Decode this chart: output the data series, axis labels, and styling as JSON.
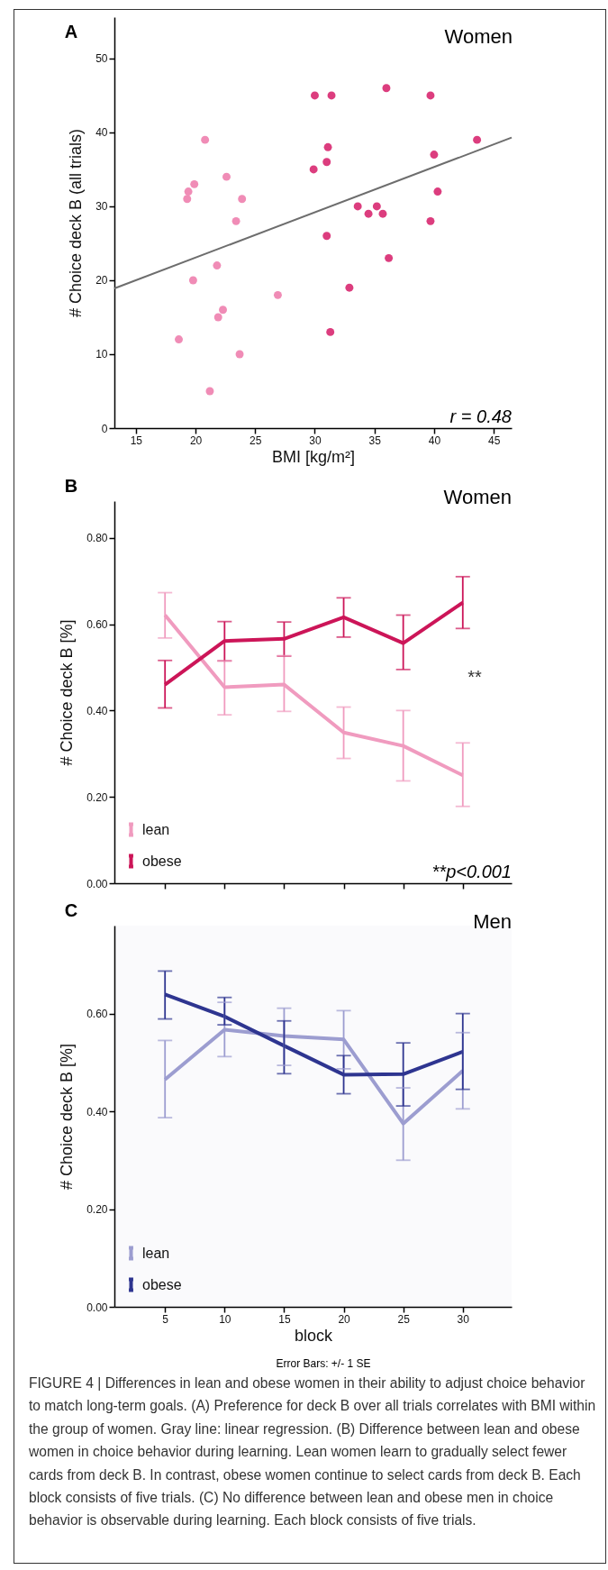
{
  "chart_data": [
    {
      "type": "scatter",
      "title": "Women",
      "xlabel": "BMI [kg/m²]",
      "ylabel": "# Choice deck B (all trials)",
      "marker": "circle",
      "xlim": [
        13.2,
        46.5
      ],
      "xticks": [
        15,
        20,
        25,
        30,
        35,
        40,
        45
      ],
      "ylim": [
        0,
        55.6
      ],
      "yticks": [
        0,
        10,
        20,
        30,
        40,
        50
      ],
      "annotations": [
        "A",
        "r = 0.48"
      ],
      "series": [
        {
          "color": "#f08cb6",
          "x": [
            20.8,
            19.4,
            19.3,
            19.9,
            22.6,
            23.9,
            23.4,
            21.8,
            19.8,
            22.3,
            21.9,
            18.6,
            23.7,
            21.2,
            26.9
          ],
          "values": [
            39,
            32,
            31,
            33,
            34,
            31,
            28,
            22,
            20,
            16,
            15,
            12,
            10,
            5,
            18
          ]
        },
        {
          "color": "#dc3d7e",
          "x": [
            30.0,
            31.4,
            36.0,
            39.7,
            29.9,
            31.0,
            31.1,
            43.6,
            40.0,
            40.3,
            39.7,
            33.6,
            34.5,
            35.2,
            35.7,
            31.0,
            36.2,
            32.9,
            31.3
          ],
          "values": [
            45,
            45,
            46,
            45,
            35,
            36,
            38,
            39,
            37,
            32,
            28,
            30,
            29,
            30,
            29,
            26,
            23,
            19,
            13
          ]
        },
        {
          "type": "line",
          "marker": "none",
          "color": "#6d6d6d",
          "x": [
            13.2,
            46.5
          ],
          "values": [
            18.9,
            39.3
          ]
        }
      ]
    },
    {
      "type": "line",
      "title": "Women",
      "ylabel": "# Choice deck B [%]",
      "legend": "bottom left",
      "tick_labels": "y",
      "xlim": [
        0.75,
        34.1
      ],
      "xticks": [
        5,
        10,
        15,
        20,
        25,
        30
      ],
      "ylim": [
        0,
        0.885
      ],
      "yticks": [
        {
          "value": 0,
          "label": "0.00"
        },
        {
          "value": 0.2,
          "label": "0.20"
        },
        {
          "value": 0.4,
          "label": "0.40"
        },
        {
          "value": 0.6,
          "label": "0.60"
        },
        {
          "value": 0.8,
          "label": "0.80"
        }
      ],
      "annotations": [
        "B",
        "**p<0.001",
        "**"
      ],
      "x": [
        5,
        10,
        15,
        20,
        25,
        30
      ],
      "series": [
        {
          "name": "lean",
          "color": "#f09bbf",
          "values": [
            0.621,
            0.454,
            0.46,
            0.349,
            0.318,
            0.25
          ],
          "errors": [
            [
              0.568,
              0.673
            ],
            [
              0.39,
              0.515
            ],
            [
              0.398,
              0.527
            ],
            [
              0.289,
              0.408
            ],
            [
              0.237,
              0.4
            ],
            [
              0.178,
              0.325
            ]
          ]
        },
        {
          "name": "obese",
          "color": "#cc1558",
          "values": [
            0.46,
            0.561,
            0.566,
            0.616,
            0.556,
            0.65
          ],
          "errors": [
            [
              0.406,
              0.516
            ],
            [
              0.515,
              0.606
            ],
            [
              0.526,
              0.605
            ],
            [
              0.57,
              0.661
            ],
            [
              0.495,
              0.621
            ],
            [
              0.59,
              0.71
            ]
          ]
        }
      ]
    },
    {
      "type": "line",
      "title": "Men",
      "xlabel": "block",
      "ylabel": "# Choice deck B [%]",
      "legend": "bottom left",
      "xlim": [
        0.75,
        34.1
      ],
      "xticks": [
        5,
        10,
        15,
        20,
        25,
        30
      ],
      "ylim": [
        0,
        0.78
      ],
      "yticks": [
        {
          "value": 0,
          "label": "0.00"
        },
        {
          "value": 0.2,
          "label": "0.20"
        },
        {
          "value": 0.4,
          "label": "0.40"
        },
        {
          "value": 0.6,
          "label": "0.60"
        }
      ],
      "annotations": [
        "C",
        "Error Bars: +/- 1 SE",
        "FIGURE 4 | Differences in lean and obese women in their ability to adjust choice behavior to match long-term goals. (A) Preference for deck B over all trials correlates with BMI within the group of women. Gray line: linear regression. (B) Difference between lean and obese women in choice behavior during learning. Lean women learn to gradually select fewer cards from deck B. In contrast, obese women continue to select cards from deck B. Each block consists of five trials. (C) No difference between lean and obese men in choice behavior is observable during learning. Each block consists of five trials."
      ],
      "x": [
        5,
        10,
        15,
        20,
        25,
        30
      ],
      "series": [
        {
          "name": "lean",
          "color": "#9c9dd0",
          "values": [
            0.465,
            0.567,
            0.554,
            0.547,
            0.375,
            0.483
          ],
          "errors": [
            [
              0.387,
              0.545
            ],
            [
              0.512,
              0.623
            ],
            [
              0.494,
              0.611
            ],
            [
              0.487,
              0.606
            ],
            [
              0.3,
              0.448
            ],
            [
              0.405,
              0.561
            ]
          ]
        },
        {
          "name": "obese",
          "color": "#2e3590",
          "values": [
            0.639,
            0.594,
            0.534,
            0.475,
            0.476,
            0.522
          ],
          "errors": [
            [
              0.589,
              0.687
            ],
            [
              0.577,
              0.633
            ],
            [
              0.477,
              0.585
            ],
            [
              0.436,
              0.514
            ],
            [
              0.411,
              0.54
            ],
            [
              0.445,
              0.6
            ]
          ]
        }
      ]
    }
  ]
}
